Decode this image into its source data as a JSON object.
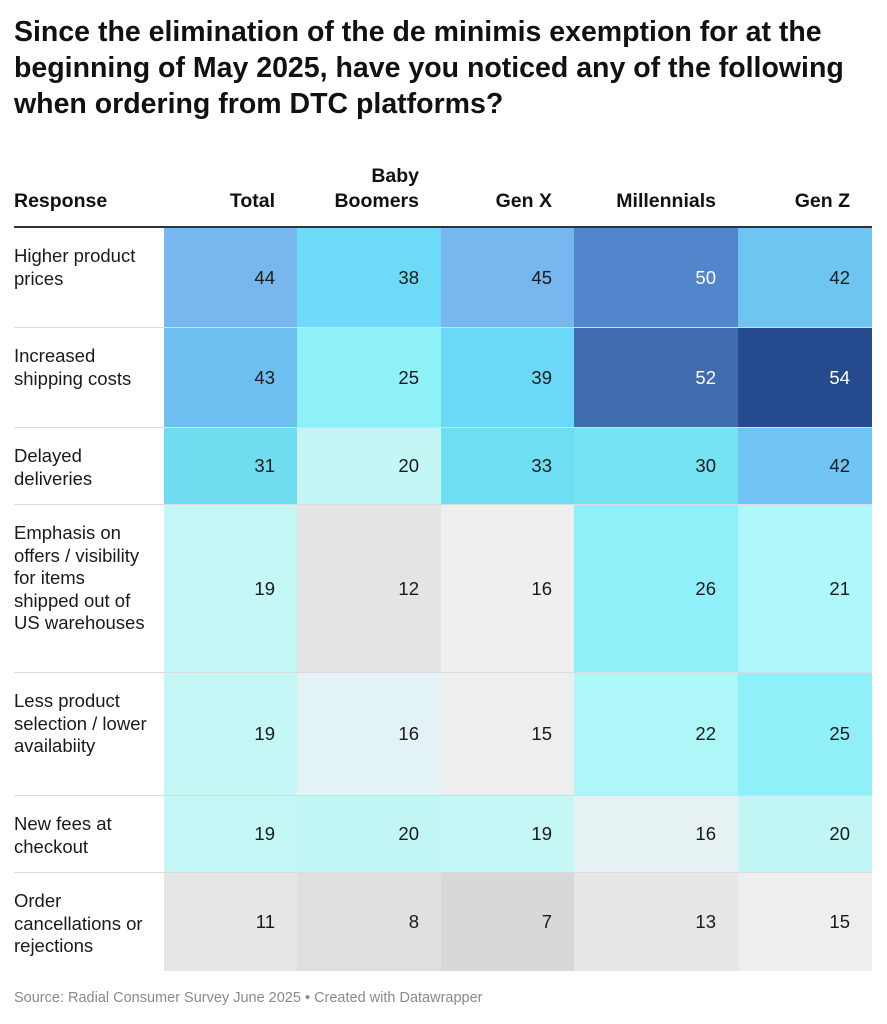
{
  "title": "Since the elimination of the de minimis exemption for at the beginning of May 2025, have you noticed any of the following when ordering from DTC platforms?",
  "source": "Source: Radial Consumer Survey June 2025 • Created with Datawrapper",
  "chart_data": {
    "type": "table",
    "header_first": "Response",
    "columns": [
      "Total",
      "Baby Boomers",
      "Gen X",
      "Millennials",
      "Gen Z"
    ],
    "rows": [
      {
        "label": "Higher product prices",
        "values": [
          44,
          38,
          45,
          50,
          42
        ],
        "colors": [
          "#75b7ee",
          "#6ddaf7",
          "#75b7ee",
          "#5285cc",
          "#6ec5f2"
        ]
      },
      {
        "label": "Increased shipping costs",
        "values": [
          43,
          25,
          39,
          52,
          54
        ],
        "colors": [
          "#6ec0f0",
          "#8ef1f7",
          "#6ad9f8",
          "#3f6baf",
          "#254b8e"
        ]
      },
      {
        "label": "Delayed deliveries",
        "values": [
          31,
          20,
          33,
          30,
          42
        ],
        "colors": [
          "#6fdcef",
          "#c4f6f5",
          "#6edff3",
          "#75e3f1",
          "#6fc4f3"
        ]
      },
      {
        "label": "Emphasis on offers / visibility for items shipped out of US warehouses",
        "values": [
          19,
          12,
          16,
          26,
          21
        ],
        "colors": [
          "#c4f7f5",
          "#e4e4e4",
          "#eef0f0",
          "#8ff0f9",
          "#aff7f8"
        ]
      },
      {
        "label": "Less product selection / lower availabiity",
        "values": [
          19,
          16,
          15,
          22,
          25
        ],
        "colors": [
          "#c4f7f5",
          "#e3f2f4",
          "#eceeef",
          "#adf7f9",
          "#8ff0f9"
        ]
      },
      {
        "label": "New fees at checkout",
        "values": [
          19,
          20,
          19,
          16,
          20
        ],
        "colors": [
          "#c4f7f5",
          "#c1f6f5",
          "#c4f7f5",
          "#e5f1f3",
          "#c1f6f5"
        ]
      },
      {
        "label": "Order cancellations or rejections",
        "values": [
          11,
          8,
          7,
          13,
          15
        ],
        "colors": [
          "#e6e6e6",
          "#e0e0e0",
          "#d8d8d8",
          "#e7e7e7",
          "#eeeeee"
        ]
      }
    ]
  }
}
